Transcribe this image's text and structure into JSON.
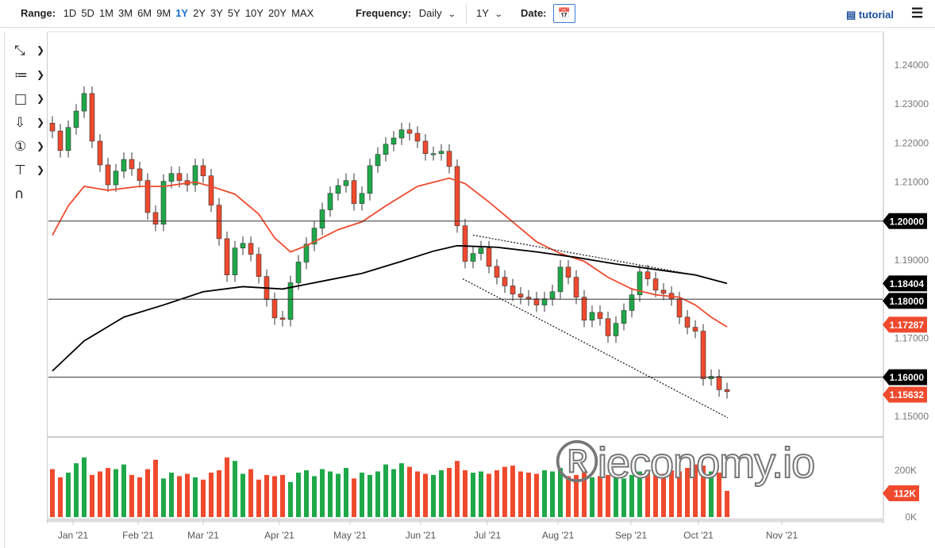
{
  "toolbar": {
    "range_label": "Range:",
    "ranges": [
      "1D",
      "5D",
      "1M",
      "3M",
      "6M",
      "9M",
      "1Y",
      "2Y",
      "3Y",
      "5Y",
      "10Y",
      "20Y",
      "MAX"
    ],
    "active_range": "1Y",
    "frequency_label": "Frequency:",
    "frequency_value": "Daily",
    "period_value": "1Y",
    "date_label": "Date:",
    "calendar_icon": "calendar-icon",
    "tutorial_label": "tutorial",
    "tutorial_icon": "film-icon",
    "menu_icon": "hamburger-icon"
  },
  "tools": [
    "line-tool-icon",
    "fibonacci-tool-icon",
    "rectangle-tool-icon",
    "arrow-down-tool-icon",
    "counter-tool-icon",
    "measure-tool-icon",
    "magnet-icon"
  ],
  "watermark": "ieconomy.io",
  "colors": {
    "up": "#1fa84a",
    "down": "#ef4a2e",
    "ma50": "#ef4a2e",
    "ma200": "#000000",
    "label_dark": "#000000",
    "label_red": "#ef4a2e"
  },
  "chart_data": {
    "type": "candlestick",
    "x_tick_labels": [
      "Jan '21",
      "Feb '21",
      "Mar '21",
      "Apr '21",
      "May '21",
      "Jun '21",
      "Jul '21",
      "Aug '21",
      "Sep '21",
      "Oct '21",
      "Nov '21"
    ],
    "y_tick_labels": [
      "1.24000",
      "1.23000",
      "1.22000",
      "1.21000",
      "1.19000",
      "1.17000",
      "1.15000"
    ],
    "y_ticks": [
      1.24,
      1.23,
      1.22,
      1.21,
      1.19,
      1.17,
      1.15
    ],
    "ylim": [
      1.146,
      1.2475
    ],
    "closes": [
      1.2231,
      1.2181,
      1.224,
      1.2282,
      1.2327,
      1.2205,
      1.2144,
      1.2093,
      1.2128,
      1.2158,
      1.2134,
      1.2104,
      1.2022,
      1.1992,
      1.2102,
      1.2122,
      1.2104,
      1.2093,
      1.2142,
      1.2116,
      1.2041,
      1.1955,
      1.1862,
      1.1931,
      1.1943,
      1.1915,
      1.1858,
      1.1799,
      1.1752,
      1.1748,
      1.1842,
      1.1895,
      1.1941,
      1.1982,
      1.2029,
      1.2071,
      1.2091,
      1.2104,
      1.2045,
      1.2071,
      1.2142,
      1.2171,
      1.2197,
      1.2213,
      1.2234,
      1.2225,
      1.2205,
      1.2173,
      1.2173,
      1.2179,
      1.214,
      1.1988,
      1.1897,
      1.1917,
      1.1931,
      1.1884,
      1.1856,
      1.1834,
      1.1813,
      1.1805,
      1.1801,
      1.1785,
      1.1801,
      1.1819,
      1.1882,
      1.1856,
      1.1805,
      1.1746,
      1.1766,
      1.175,
      1.1706,
      1.1738,
      1.1771,
      1.1811,
      1.187,
      1.1852,
      1.1823,
      1.1815,
      1.1801,
      1.1754,
      1.1728,
      1.1718,
      1.1596,
      1.1602,
      1.1568,
      1.1563
    ],
    "ma50": [
      [
        0,
        1.1964
      ],
      [
        2,
        1.2039
      ],
      [
        4,
        1.2089
      ],
      [
        7,
        1.2079
      ],
      [
        11,
        1.2089
      ],
      [
        14,
        1.2089
      ],
      [
        18,
        1.21
      ],
      [
        20,
        1.2089
      ],
      [
        23,
        1.2069
      ],
      [
        26,
        1.2018
      ],
      [
        28,
        1.1957
      ],
      [
        30,
        1.1921
      ],
      [
        32,
        1.1937
      ],
      [
        36,
        1.1978
      ],
      [
        39,
        1.1998
      ],
      [
        42,
        1.2039
      ],
      [
        46,
        1.2089
      ],
      [
        50,
        1.211
      ],
      [
        52,
        1.2096
      ],
      [
        55,
        1.2049
      ],
      [
        58,
        1.1998
      ],
      [
        61,
        1.1947
      ],
      [
        64,
        1.1917
      ],
      [
        67,
        1.1897
      ],
      [
        70,
        1.1856
      ],
      [
        73,
        1.1826
      ],
      [
        76,
        1.1811
      ],
      [
        79,
        1.1805
      ],
      [
        81,
        1.1785
      ],
      [
        83,
        1.1754
      ],
      [
        85,
        1.17287
      ]
    ],
    "ma200": [
      [
        0,
        1.1616
      ],
      [
        4,
        1.1693
      ],
      [
        9,
        1.1754
      ],
      [
        14,
        1.1785
      ],
      [
        19,
        1.1819
      ],
      [
        24,
        1.1832
      ],
      [
        29,
        1.1826
      ],
      [
        34,
        1.1846
      ],
      [
        39,
        1.1866
      ],
      [
        44,
        1.1897
      ],
      [
        48,
        1.1923
      ],
      [
        51,
        1.1937
      ],
      [
        56,
        1.1933
      ],
      [
        61,
        1.1921
      ],
      [
        66,
        1.1907
      ],
      [
        71,
        1.189
      ],
      [
        76,
        1.1876
      ],
      [
        81,
        1.1862
      ],
      [
        85,
        1.18404
      ]
    ],
    "horizontal_lines": [
      {
        "value": 1.2,
        "label": "1.20000"
      },
      {
        "value": 1.18,
        "label": "1.18000"
      },
      {
        "value": 1.16,
        "label": "1.16000"
      }
    ],
    "trendlines": [
      [
        [
          53,
          1.1964
        ],
        [
          81.5,
          1.186
        ]
      ],
      [
        [
          51.7,
          1.1852
        ],
        [
          85.1,
          1.1496
        ]
      ]
    ],
    "price_labels": [
      {
        "value": 1.18404,
        "label": "1.18404",
        "color": "dark"
      },
      {
        "value": 1.17287,
        "label": "1.17287",
        "color": "red"
      },
      {
        "value": 1.15632,
        "label": "1.15632",
        "color": "red"
      }
    ],
    "volume": {
      "tick_labels": [
        "200K",
        "0K"
      ],
      "ticks": [
        200,
        0
      ],
      "ymax": 260,
      "last_label": "112K",
      "values": [
        205,
        170,
        190,
        230,
        255,
        180,
        195,
        210,
        205,
        225,
        180,
        170,
        205,
        245,
        165,
        190,
        175,
        185,
        170,
        160,
        190,
        200,
        255,
        240,
        185,
        205,
        160,
        180,
        175,
        180,
        150,
        190,
        200,
        175,
        205,
        195,
        185,
        210,
        165,
        190,
        180,
        195,
        225,
        205,
        230,
        215,
        195,
        185,
        180,
        200,
        210,
        240,
        200,
        190,
        195,
        185,
        200,
        215,
        220,
        195,
        190,
        185,
        200,
        195,
        210,
        175,
        180,
        190,
        170,
        175,
        180,
        170,
        165,
        180,
        195,
        200,
        190,
        185,
        200,
        195,
        210,
        225,
        220,
        195,
        190,
        112
      ]
    }
  }
}
